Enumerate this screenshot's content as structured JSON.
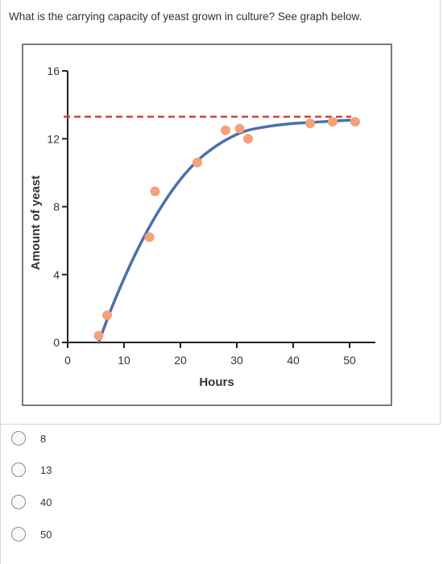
{
  "question": {
    "text": "What is the carrying capacity of yeast grown in culture?  See graph below."
  },
  "colors": {
    "curve": "#4a6fad",
    "points": "#f4a27a",
    "capacity_line": "#d6413c",
    "axis": "#222222"
  },
  "chart_data": {
    "type": "scatter",
    "xlabel": "Hours",
    "ylabel": "Amount of yeast",
    "xlim": [
      0,
      55
    ],
    "ylim": [
      0,
      16
    ],
    "xticks": [
      0,
      10,
      20,
      30,
      40,
      50
    ],
    "yticks": [
      0,
      4,
      8,
      12,
      16
    ],
    "grid": false,
    "capacity_line": {
      "y": 13.3,
      "x_range": [
        5,
        50
      ],
      "style": "dashed"
    },
    "points": [
      {
        "x": 5.5,
        "y": 0.4
      },
      {
        "x": 7,
        "y": 1.6
      },
      {
        "x": 14.5,
        "y": 6.2
      },
      {
        "x": 15.5,
        "y": 8.9
      },
      {
        "x": 23,
        "y": 10.6
      },
      {
        "x": 28,
        "y": 12.5
      },
      {
        "x": 30.5,
        "y": 12.6
      },
      {
        "x": 32,
        "y": 12.0
      },
      {
        "x": 43,
        "y": 12.9
      },
      {
        "x": 47,
        "y": 13.0
      },
      {
        "x": 51,
        "y": 13.0
      }
    ],
    "curve": {
      "model": "logistic-fit",
      "points": [
        {
          "x": 5.5,
          "y": 0.0
        },
        {
          "x": 8,
          "y": 2.2
        },
        {
          "x": 11,
          "y": 4.5
        },
        {
          "x": 14,
          "y": 6.5
        },
        {
          "x": 17,
          "y": 8.2
        },
        {
          "x": 20,
          "y": 9.6
        },
        {
          "x": 23,
          "y": 10.7
        },
        {
          "x": 26,
          "y": 11.5
        },
        {
          "x": 29,
          "y": 12.1
        },
        {
          "x": 32,
          "y": 12.5
        },
        {
          "x": 36,
          "y": 12.75
        },
        {
          "x": 40,
          "y": 12.9
        },
        {
          "x": 45,
          "y": 13.0
        },
        {
          "x": 50,
          "y": 13.1
        }
      ]
    }
  },
  "choices": [
    {
      "label": "8"
    },
    {
      "label": "13"
    },
    {
      "label": "40"
    },
    {
      "label": "50"
    }
  ]
}
